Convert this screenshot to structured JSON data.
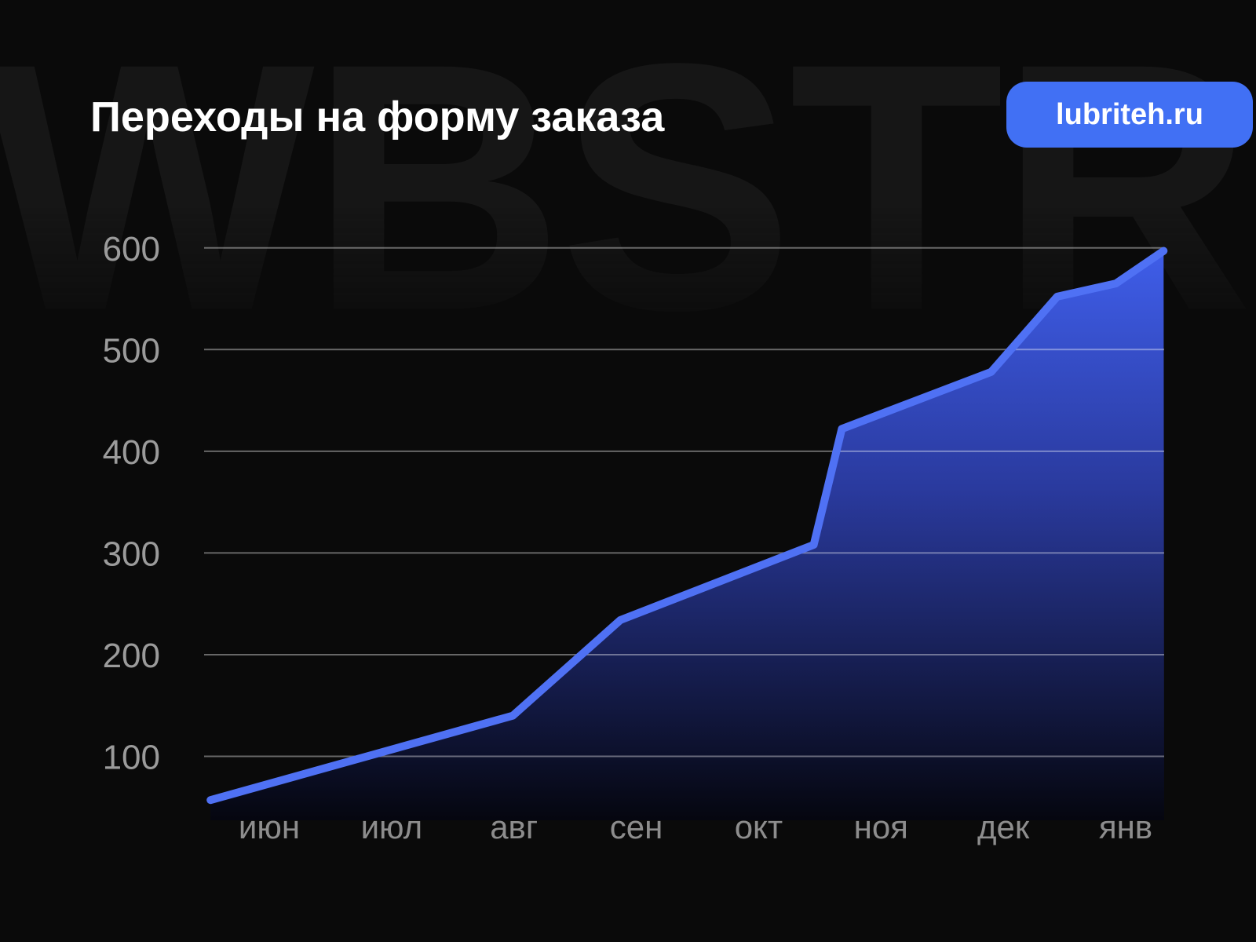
{
  "page": {
    "background": "#0a0a0a"
  },
  "watermark": {
    "text": "WBSTR",
    "color": "#161616"
  },
  "header": {
    "title": "Переходы на форму заказа",
    "title_color": "#ffffff"
  },
  "badge": {
    "label": "lubriteh.ru",
    "background": "#4170f4",
    "text_color": "#ffffff"
  },
  "chart_data": {
    "type": "area",
    "title": "Переходы на форму заказа",
    "x_tick_labels": [
      "июн",
      "июл",
      "авг",
      "сен",
      "окт",
      "ноя",
      "дек",
      "янв"
    ],
    "x_unit": "month index, 0 = июн (line starts before июн and ends after янв)",
    "y_ticks": [
      100,
      200,
      300,
      400,
      500,
      600
    ],
    "ylim": [
      35,
      620
    ],
    "grid": "horizontal gridlines only",
    "legend": "none",
    "series": [
      {
        "name": "переходы на форму заказа",
        "points": [
          {
            "x": -0.48,
            "y": 57
          },
          {
            "x": 1.99,
            "y": 140
          },
          {
            "x": 2.87,
            "y": 234
          },
          {
            "x": 4.45,
            "y": 308
          },
          {
            "x": 4.68,
            "y": 422
          },
          {
            "x": 5.9,
            "y": 478
          },
          {
            "x": 6.44,
            "y": 552
          },
          {
            "x": 6.92,
            "y": 565
          },
          {
            "x": 7.31,
            "y": 597
          }
        ]
      }
    ],
    "line_color": "#4f71f4",
    "area_gradient_top": "#3f5eea",
    "area_gradient_mid": "#2a3a9e",
    "area_gradient_bottom": "#05060f",
    "gridline_color": "rgba(255,255,255,0.38)",
    "y_label_color": "#9b9b9b",
    "x_label_color": "#8d8d8d"
  }
}
